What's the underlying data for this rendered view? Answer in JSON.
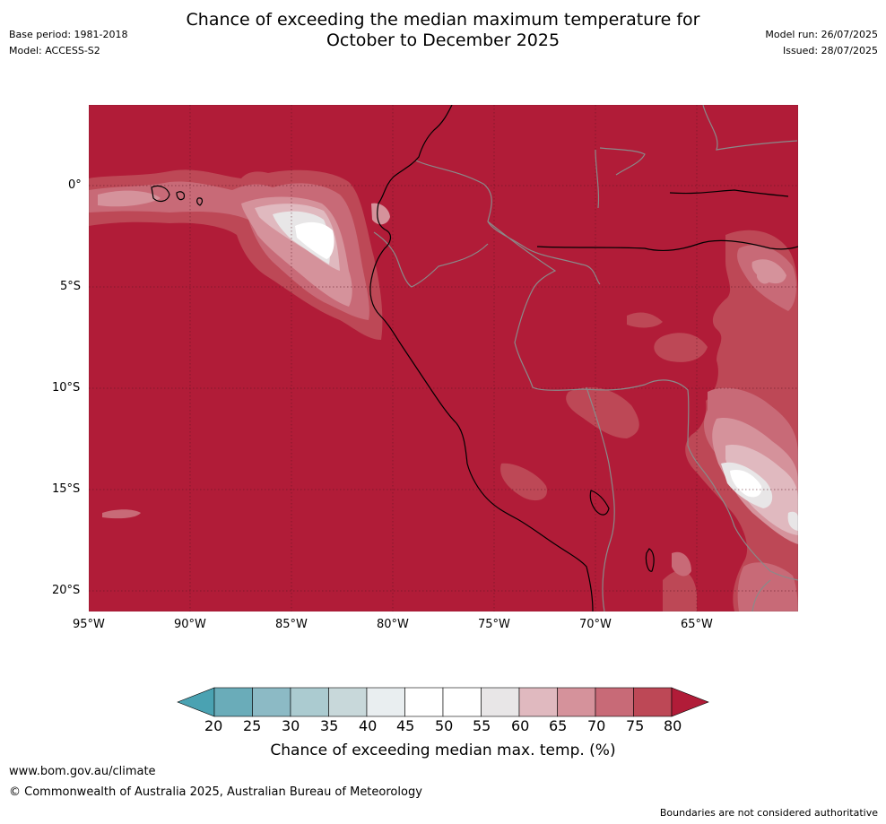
{
  "header": {
    "title_line1": "Chance of exceeding the median maximum temperature for",
    "title_line2": "October to December 2025",
    "base_period": "Base period: 1981-2018",
    "model": "Model: ACCESS-S2",
    "model_run": "Model run: 26/07/2025",
    "issued": "Issued: 28/07/2025"
  },
  "map": {
    "lat_labels": [
      "0°",
      "5°S",
      "10°S",
      "15°S",
      "20°S"
    ],
    "lon_labels": [
      "95°W",
      "90°W",
      "85°W",
      "80°W",
      "75°W",
      "70°W",
      "65°W"
    ],
    "background_color": "#b11c38"
  },
  "colorbar": {
    "ticks": [
      "20",
      "25",
      "30",
      "35",
      "40",
      "45",
      "50",
      "55",
      "60",
      "65",
      "70",
      "75",
      "80"
    ],
    "colors": [
      "#6aacb9",
      "#8cbac5",
      "#abcbd0",
      "#c8d8da",
      "#e9eef0",
      "#ffffff",
      "#ffffff",
      "#e8e6e7",
      "#e0b9bf",
      "#d5929b",
      "#c86a77",
      "#bd4856"
    ],
    "under_color": "#4aa2b2",
    "over_color": "#b11c38",
    "label": "Chance of exceeding median max. temp. (%)"
  },
  "footer": {
    "url": "www.bom.gov.au/climate",
    "copyright": "© Commonwealth of Australia 2025, Australian Bureau of Meteorology",
    "disclaimer": "Boundaries are not considered authoritative"
  }
}
